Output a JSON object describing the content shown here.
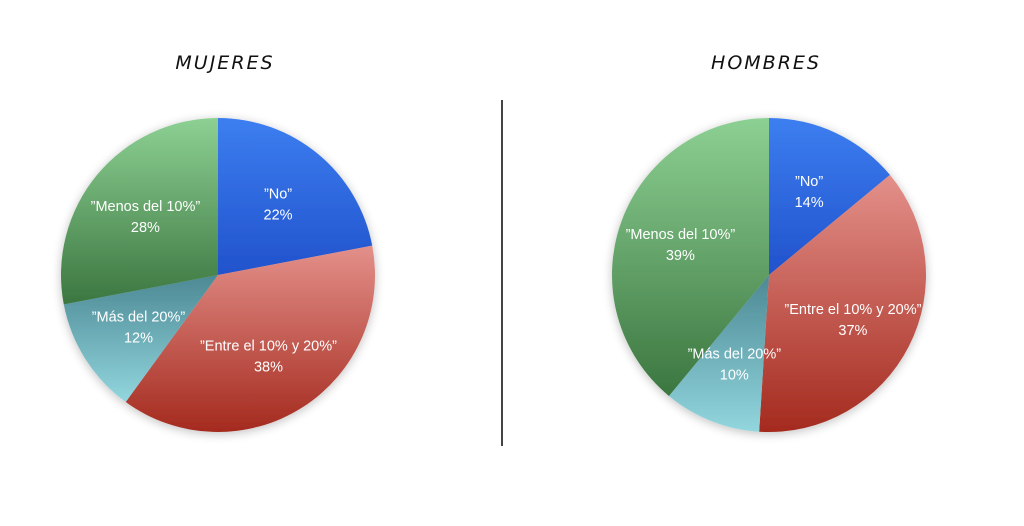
{
  "chart_data": [
    {
      "type": "pie",
      "title": "MUJERES",
      "slices": [
        {
          "label": "”No”",
          "value": 22,
          "value_label": "22%",
          "color_light": "#3c7ef0",
          "color_dark": "#2152cc"
        },
        {
          "label": "”Entre el 10% y 20%”",
          "value": 38,
          "value_label": "38%",
          "color_light": "#e3908a",
          "color_dark": "#a42a1e"
        },
        {
          "label": "”Más del 20%”",
          "value": 12,
          "value_label": "12%",
          "color_light": "#4c8994",
          "color_dark": "#92d6de"
        },
        {
          "label": "”Menos del 10%”",
          "value": 28,
          "value_label": "28%",
          "color_light": "#8dd093",
          "color_dark": "#3b7640"
        }
      ]
    },
    {
      "type": "pie",
      "title": "HOMBRES",
      "slices": [
        {
          "label": "”No”",
          "value": 14,
          "value_label": "14%",
          "color_light": "#3c7ef0",
          "color_dark": "#2152cc"
        },
        {
          "label": "”Entre el 10% y 20%”",
          "value": 37,
          "value_label": "37%",
          "color_light": "#e3908a",
          "color_dark": "#a42a1e"
        },
        {
          "label": "”Más del 20%”",
          "value": 10,
          "value_label": "10%",
          "color_light": "#4c8994",
          "color_dark": "#92d6de"
        },
        {
          "label": "”Menos del 10%”",
          "value": 39,
          "value_label": "39%",
          "color_light": "#8dd093",
          "color_dark": "#3b7640"
        }
      ]
    }
  ]
}
